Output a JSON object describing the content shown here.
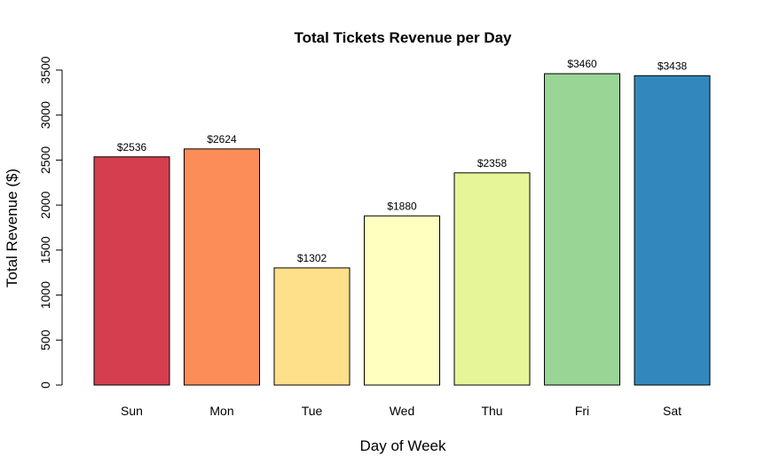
{
  "chart_data": {
    "type": "bar",
    "title": "Total Tickets Revenue per Day",
    "xlabel": "Day of Week",
    "ylabel": "Total Revenue ($)",
    "categories": [
      "Sun",
      "Mon",
      "Tue",
      "Wed",
      "Thu",
      "Fri",
      "Sat"
    ],
    "values": [
      2536,
      2624,
      1302,
      1880,
      2358,
      3460,
      3438
    ],
    "data_labels": [
      "$2536",
      "$2624",
      "$1302",
      "$1880",
      "$2358",
      "$3460",
      "$3438"
    ],
    "colors": [
      "#D53E4F",
      "#FC8D59",
      "#FEE08B",
      "#FFFFBF",
      "#E6F598",
      "#99D594",
      "#3288BD"
    ],
    "ylim": [
      0,
      3500
    ],
    "yticks": [
      0,
      500,
      1000,
      1500,
      2000,
      2500,
      3000,
      3500
    ],
    "ytick_labels": [
      "0",
      "500",
      "1000",
      "1500",
      "2000",
      "2500",
      "3000",
      "3500"
    ],
    "grid": false,
    "legend": false
  }
}
